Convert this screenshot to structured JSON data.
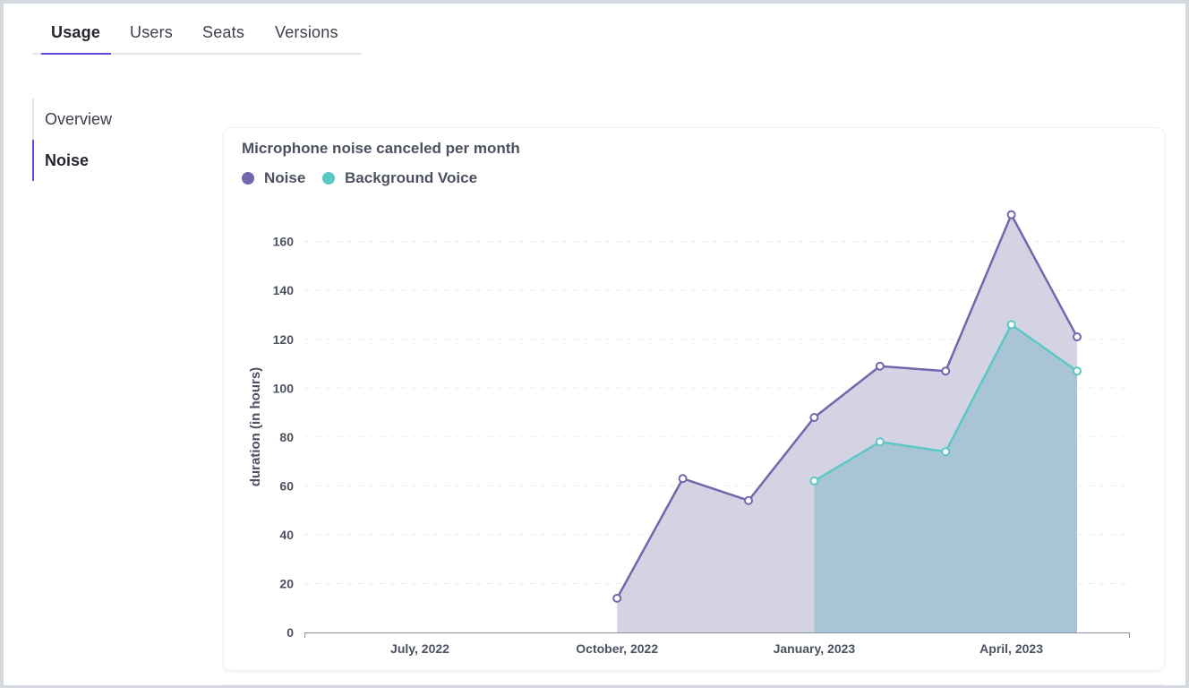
{
  "tabs": [
    {
      "label": "Usage",
      "active": true
    },
    {
      "label": "Users",
      "active": false
    },
    {
      "label": "Seats",
      "active": false
    },
    {
      "label": "Versions",
      "active": false
    }
  ],
  "sidenav": [
    {
      "label": "Overview",
      "active": false
    },
    {
      "label": "Noise",
      "active": true
    }
  ],
  "colors": {
    "accent": "#5b4de0",
    "noise": "#6f68ac",
    "noise_fill": "#d3d3e4",
    "background_voice": "#5cc8c4",
    "background_voice_fill": "#a9c4d6"
  },
  "chart_data": {
    "type": "area",
    "title": "Microphone noise canceled per month",
    "ylabel": "duration (in hours)",
    "xlabel": "",
    "ylim": [
      0,
      170
    ],
    "yticks": [
      0,
      20,
      40,
      60,
      80,
      100,
      120,
      140,
      160
    ],
    "xticks": [
      "July, 2022",
      "October, 2022",
      "January, 2023",
      "April, 2023"
    ],
    "grid": true,
    "legend_position": "top-left",
    "x": [
      "October, 2022",
      "November, 2022",
      "December, 2022",
      "January, 2023",
      "February, 2023",
      "March, 2023",
      "April, 2023",
      "May, 2023"
    ],
    "series": [
      {
        "name": "Noise",
        "values": [
          14,
          63,
          54,
          88,
          109,
          107,
          171,
          121
        ]
      },
      {
        "name": "Background Voice",
        "values": [
          null,
          null,
          null,
          62,
          78,
          74,
          126,
          107
        ]
      }
    ]
  }
}
